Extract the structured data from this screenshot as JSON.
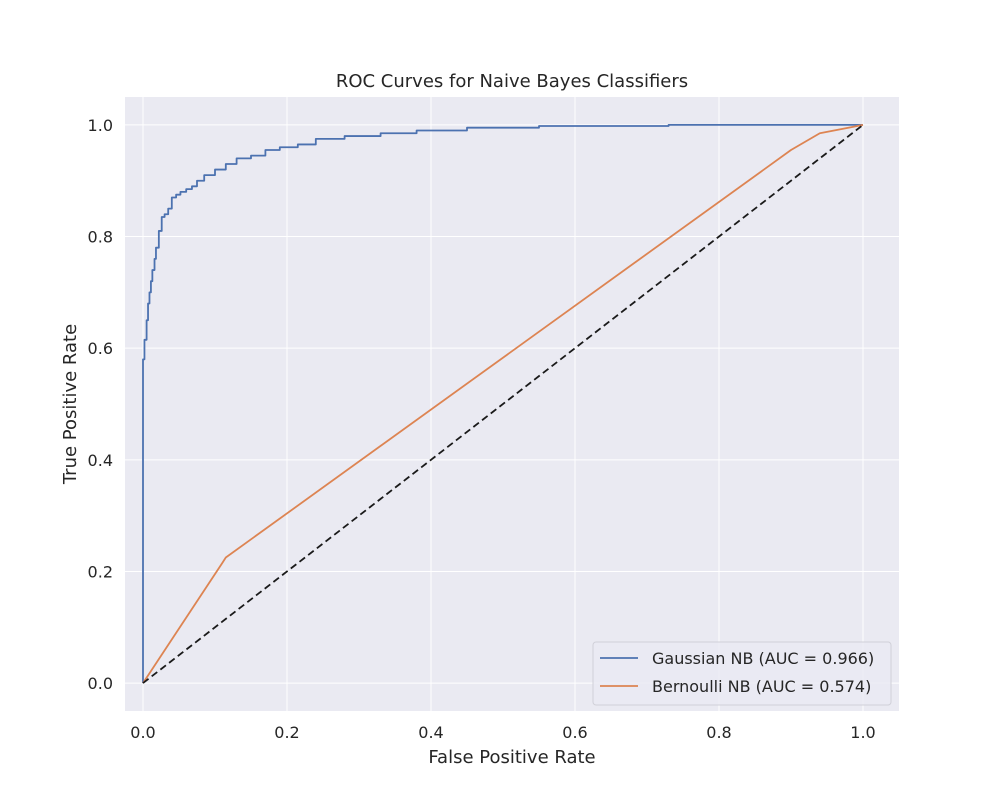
{
  "chart_data": {
    "type": "line",
    "title": "ROC Curves for Naive Bayes Classifiers",
    "xlabel": "False Positive Rate",
    "ylabel": "True Positive Rate",
    "xlim": [
      -0.025,
      1.05
    ],
    "ylim": [
      -0.05,
      1.05
    ],
    "xticks": [
      "0.0",
      "0.2",
      "0.4",
      "0.6",
      "0.8",
      "1.0"
    ],
    "yticks": [
      "0.0",
      "0.2",
      "0.4",
      "0.6",
      "0.8",
      "1.0"
    ],
    "grid": true,
    "legend_position": "lower-right",
    "colors": {
      "background": "#eaeaf2",
      "grid": "#ffffff",
      "diagonal": "#1a1a1a"
    },
    "series": [
      {
        "name": "Gaussian NB (AUC = 0.966)",
        "color": "#4c72b0",
        "x": [
          0.0,
          0.0,
          0.002,
          0.002,
          0.005,
          0.005,
          0.007,
          0.007,
          0.009,
          0.009,
          0.011,
          0.011,
          0.013,
          0.013,
          0.016,
          0.016,
          0.018,
          0.018,
          0.022,
          0.022,
          0.026,
          0.026,
          0.03,
          0.03,
          0.035,
          0.035,
          0.04,
          0.04,
          0.046,
          0.046,
          0.052,
          0.052,
          0.06,
          0.06,
          0.068,
          0.068,
          0.075,
          0.075,
          0.085,
          0.085,
          0.1,
          0.1,
          0.115,
          0.115,
          0.13,
          0.13,
          0.15,
          0.15,
          0.17,
          0.17,
          0.19,
          0.19,
          0.215,
          0.215,
          0.24,
          0.24,
          0.28,
          0.28,
          0.33,
          0.33,
          0.38,
          0.38,
          0.45,
          0.45,
          0.55,
          0.55,
          0.73,
          0.73,
          1.0
        ],
        "y": [
          0.0,
          0.58,
          0.58,
          0.615,
          0.615,
          0.65,
          0.65,
          0.68,
          0.68,
          0.7,
          0.7,
          0.72,
          0.72,
          0.74,
          0.74,
          0.76,
          0.76,
          0.78,
          0.78,
          0.81,
          0.81,
          0.835,
          0.835,
          0.84,
          0.84,
          0.85,
          0.85,
          0.87,
          0.87,
          0.875,
          0.875,
          0.88,
          0.88,
          0.885,
          0.885,
          0.89,
          0.89,
          0.9,
          0.9,
          0.91,
          0.91,
          0.92,
          0.92,
          0.93,
          0.93,
          0.94,
          0.94,
          0.945,
          0.945,
          0.955,
          0.955,
          0.96,
          0.96,
          0.965,
          0.965,
          0.975,
          0.975,
          0.98,
          0.98,
          0.985,
          0.985,
          0.99,
          0.99,
          0.995,
          0.995,
          0.998,
          0.998,
          1.0,
          1.0
        ]
      },
      {
        "name": "Bernoulli NB (AUC = 0.574)",
        "color": "#dd8452",
        "x": [
          0.0,
          0.11,
          0.115,
          0.9,
          0.94,
          1.0
        ],
        "y": [
          0.0,
          0.215,
          0.225,
          0.955,
          0.985,
          1.0
        ]
      },
      {
        "name": "",
        "color": "#1a1a1a",
        "dashed": true,
        "x": [
          0.0,
          1.0
        ],
        "y": [
          0.0,
          1.0
        ]
      }
    ]
  }
}
